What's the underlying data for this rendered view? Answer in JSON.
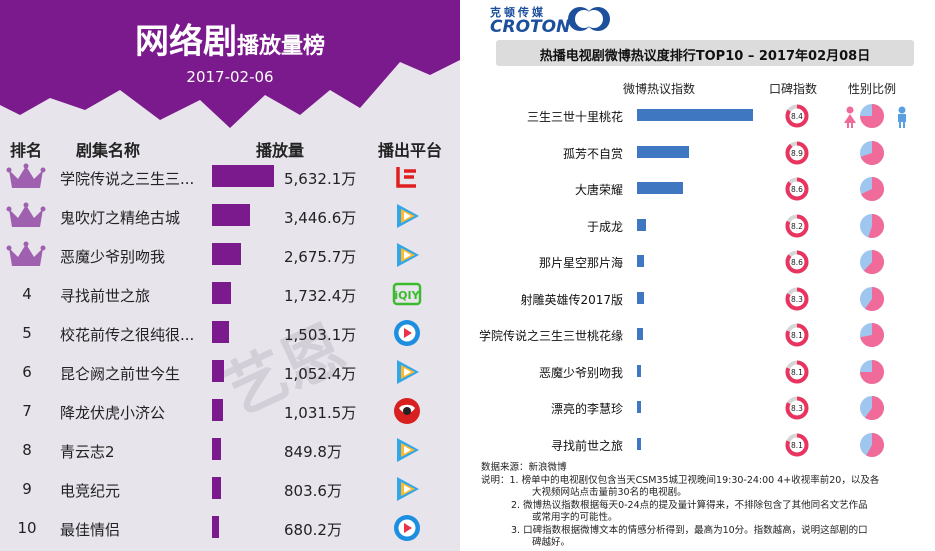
{
  "left": {
    "title_big": "网络剧",
    "title_small": "播放量榜",
    "date": "2017-02-06",
    "headers": {
      "rank": "排名",
      "name": "剧集名称",
      "plays": "播放量",
      "platform": "播出平台"
    },
    "watermark": "艺恩",
    "colors": {
      "header": "#7b1a8c",
      "bar": "#7b1a8c",
      "crown": "#a060b0"
    },
    "rows": [
      {
        "rank": "",
        "crown": true,
        "name": "学院传说之三生三...",
        "value_label": "5,632.1万",
        "value": 5632.1,
        "platform": "letv-icon"
      },
      {
        "rank": "",
        "crown": true,
        "name": "鬼吹灯之精绝古城",
        "value_label": "3,446.6万",
        "value": 3446.6,
        "platform": "tencent-video-icon"
      },
      {
        "rank": "",
        "crown": true,
        "name": "恶魔少爷别吻我",
        "value_label": "2,675.7万",
        "value": 2675.7,
        "platform": "tencent-video-icon"
      },
      {
        "rank": "4",
        "crown": false,
        "name": "寻找前世之旅",
        "value_label": "1,732.4万",
        "value": 1732.4,
        "platform": "iqiyi-icon"
      },
      {
        "rank": "5",
        "crown": false,
        "name": "校花前传之很纯很...",
        "value_label": "1,503.1万",
        "value": 1503.1,
        "platform": "youku-icon"
      },
      {
        "rank": "6",
        "crown": false,
        "name": "昆仑阙之前世今生",
        "value_label": "1,052.4万",
        "value": 1052.4,
        "platform": "tencent-video-icon"
      },
      {
        "rank": "7",
        "crown": false,
        "name": "降龙伏虎小济公",
        "value_label": "1,031.5万",
        "value": 1031.5,
        "platform": "sohu-icon"
      },
      {
        "rank": "8",
        "crown": false,
        "name": "青云志2",
        "value_label": "849.8万",
        "value": 849.8,
        "platform": "tencent-video-icon"
      },
      {
        "rank": "9",
        "crown": false,
        "name": "电竞纪元",
        "value_label": "803.6万",
        "value": 803.6,
        "platform": "tencent-video-icon"
      },
      {
        "rank": "10",
        "crown": false,
        "name": "最佳情侣",
        "value_label": "680.2万",
        "value": 680.2,
        "platform": "youku-icon"
      }
    ]
  },
  "right": {
    "logo_cn": "克顿传媒",
    "logo_en": "CROTON",
    "title": "热播电视剧微博热议度排行TOP10 – 2017年02月08日",
    "headers": {
      "heat": "微博热议指数",
      "rating": "口碑指数",
      "gender": "性别比例"
    },
    "colors": {
      "bar": "#3f78c0",
      "female": "#f06a9a",
      "male": "#9fc6ee",
      "rating_ring": "#e8345f"
    },
    "footnotes": [
      "数据来源：新浪微博",
      "说明：1.  榜单中的电视剧仅包含当天CSM35城卫视晚间19:30-24:00 4+收视率前20，以及各",
      "大视频网站点击量前30名的电视剧。",
      "2.  微博热议指数根据每天0-24点的提及量计算得来，不排除包含了其他同名文艺作品",
      "或常用字的可能性。",
      "3.  口碑指数根据微博文本的情感分析得到，最高为10分。指数越高，说明这部剧的口",
      "碑越好。"
    ]
  },
  "chart_data": [
    {
      "type": "bar",
      "title": "网络剧播放量榜",
      "subtitle": "2017-02-06",
      "categories": [
        "学院传说之三生三...",
        "鬼吹灯之精绝古城",
        "恶魔少爷别吻我",
        "寻找前世之旅",
        "校花前传之很纯很...",
        "昆仑阙之前世今生",
        "降龙伏虎小济公",
        "青云志2",
        "电竞纪元",
        "最佳情侣"
      ],
      "values": [
        5632.1,
        3446.6,
        2675.7,
        1732.4,
        1503.1,
        1052.4,
        1031.5,
        849.8,
        803.6,
        680.2
      ],
      "unit": "万"
    },
    {
      "type": "bar",
      "title": "热播电视剧微博热议度排行TOP10 – 2017年02月08日",
      "categories": [
        "三生三世十里桃花",
        "孤芳不自赏",
        "大唐荣耀",
        "于成龙",
        "那片星空那片海",
        "射雕英雄传2017版",
        "学院传说之三生三世桃花缘",
        "恶魔少爷别吻我",
        "漂亮的李慧珍",
        "寻找前世之旅"
      ],
      "series": [
        {
          "name": "微博热议指数",
          "values": [
            100,
            45,
            40,
            8,
            6,
            6,
            5,
            3,
            3,
            3
          ]
        },
        {
          "name": "口碑指数",
          "values": [
            8.4,
            8.9,
            8.6,
            8.2,
            8.6,
            8.3,
            8.1,
            8.1,
            8.3,
            8.1
          ]
        }
      ],
      "female_share": [
        0.75,
        0.7,
        0.68,
        0.55,
        0.62,
        0.6,
        0.72,
        0.75,
        0.6,
        0.58
      ],
      "rating_max": 10
    }
  ]
}
